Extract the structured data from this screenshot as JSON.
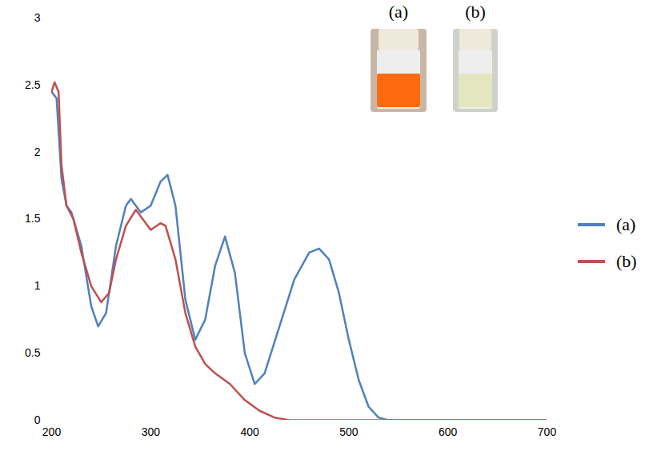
{
  "chart_data": {
    "type": "line",
    "xlim": [
      200,
      700
    ],
    "xticks": [
      200,
      300,
      400,
      500,
      600,
      700
    ],
    "ylim": [
      0,
      3
    ],
    "yticks": [
      0,
      0.5,
      1,
      1.5,
      2,
      2.5,
      3
    ],
    "legend": "right",
    "annotations": [
      "(a)",
      "(b)"
    ],
    "series": [
      {
        "name": "(a)",
        "color": "#4f81bd",
        "x": [
          200,
          205,
          210,
          215,
          220,
          230,
          240,
          247,
          255,
          265,
          275,
          280,
          290,
          300,
          310,
          317,
          325,
          335,
          345,
          355,
          365,
          375,
          385,
          395,
          405,
          415,
          430,
          445,
          460,
          470,
          480,
          490,
          500,
          510,
          520,
          530,
          540,
          700
        ],
        "values": [
          2.45,
          2.4,
          1.8,
          1.6,
          1.55,
          1.3,
          0.85,
          0.7,
          0.8,
          1.3,
          1.6,
          1.65,
          1.55,
          1.6,
          1.78,
          1.83,
          1.6,
          0.9,
          0.6,
          0.75,
          1.15,
          1.37,
          1.1,
          0.5,
          0.27,
          0.35,
          0.7,
          1.05,
          1.25,
          1.28,
          1.2,
          0.95,
          0.6,
          0.3,
          0.1,
          0.02,
          0,
          0
        ]
      },
      {
        "name": "(b)",
        "color": "#c0504d",
        "x": [
          200,
          203,
          207,
          210,
          215,
          222,
          230,
          240,
          250,
          258,
          265,
          275,
          285,
          292,
          300,
          310,
          315,
          325,
          335,
          345,
          355,
          365,
          380,
          395,
          410,
          425,
          440,
          700
        ],
        "values": [
          2.45,
          2.52,
          2.45,
          1.9,
          1.6,
          1.5,
          1.25,
          1.0,
          0.88,
          0.95,
          1.2,
          1.45,
          1.57,
          1.5,
          1.42,
          1.47,
          1.45,
          1.2,
          0.8,
          0.55,
          0.42,
          0.35,
          0.27,
          0.15,
          0.07,
          0.02,
          0,
          0
        ]
      }
    ]
  }
}
